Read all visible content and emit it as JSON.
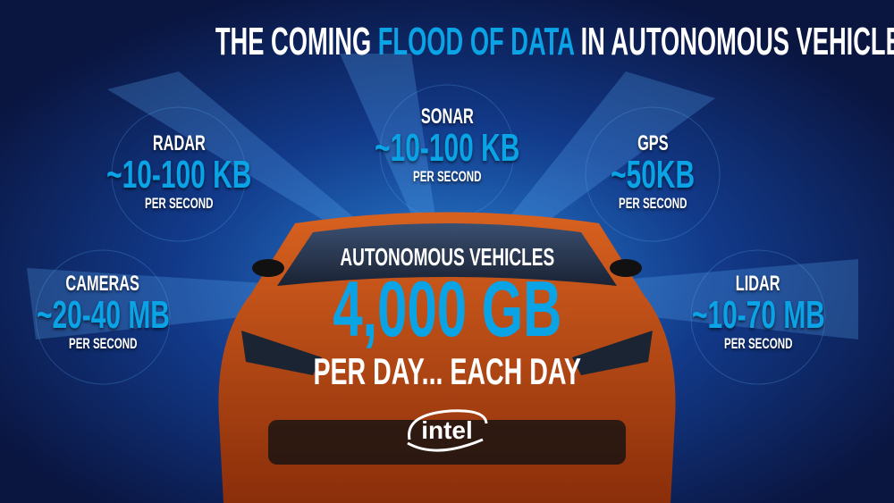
{
  "title": {
    "part1": "THE COMING",
    "highlight": "FLOOD OF DATA",
    "part2": "IN AUTONOMOUS VEHICLES"
  },
  "sensors": [
    {
      "name": "RADAR",
      "rate": "~10-100 KB",
      "unit": "PER SECOND"
    },
    {
      "name": "SONAR",
      "rate": "~10-100 KB",
      "unit": "PER SECOND"
    },
    {
      "name": "GPS",
      "rate": "~50KB",
      "unit": "PER SECOND"
    },
    {
      "name": "CAMERAS",
      "rate": "~20-40 MB",
      "unit": "PER SECOND"
    },
    {
      "name": "LIDAR",
      "rate": "~10-70 MB",
      "unit": "PER SECOND"
    }
  ],
  "center": {
    "heading": "AUTONOMOUS VEHICLES",
    "amount": "4,000 GB",
    "subtitle": "PER DAY... EACH DAY"
  },
  "logo": "intel",
  "colors": {
    "accent": "#0aa3e6",
    "background": "#0a1540",
    "car": "#c4501a"
  }
}
